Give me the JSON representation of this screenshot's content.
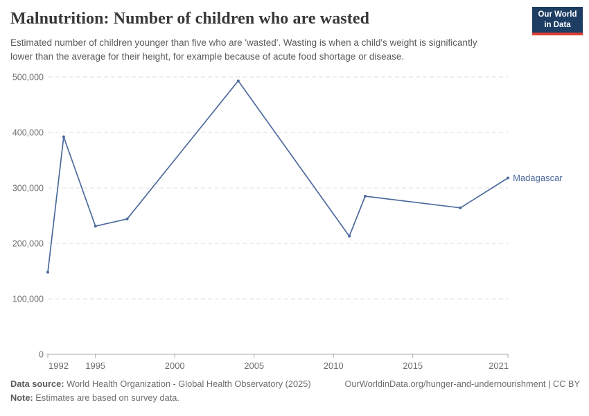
{
  "header": {
    "title": "Malnutrition: Number of children who are wasted",
    "subtitle": "Estimated number of children younger than five who are 'wasted'. Wasting is when a child's weight is significantly lower than the average for their height, for example because of acute food shortage or disease.",
    "logo": {
      "line1": "Our World",
      "line2": "in Data"
    }
  },
  "chart_data": {
    "type": "line",
    "title": "Malnutrition: Number of children who are wasted",
    "xlabel": "",
    "ylabel": "",
    "xlim": [
      1992,
      2021
    ],
    "ylim": [
      0,
      500000
    ],
    "x_ticks": [
      1992,
      1995,
      2000,
      2005,
      2010,
      2015,
      2021
    ],
    "y_ticks": [
      0,
      100000,
      200000,
      300000,
      400000,
      500000
    ],
    "grid": "horizontal-dashed",
    "legend_position": "line-end-label",
    "series": [
      {
        "name": "Madagascar",
        "color": "#4c6a9c",
        "x": [
          1992,
          1993,
          1995,
          1997,
          2004,
          2011,
          2012,
          2018,
          2021
        ],
        "values": [
          148000,
          392000,
          231000,
          244000,
          493000,
          213000,
          285000,
          264000,
          318000
        ]
      }
    ]
  },
  "colors": {
    "line": "#4c6a9c",
    "axis": "#a8a8a8",
    "grid": "#dedede",
    "tick_label": "#6e6e6e",
    "logo_bg": "#1d3d63",
    "logo_accent": "#dc3e32"
  },
  "footer": {
    "datasource_label": "Data source:",
    "datasource_text": " World Health Organization - Global Health Observatory (2025)",
    "note_label": "Note:",
    "note_text": " Estimates are based on survey data.",
    "link": "OurWorldinData.org/hunger-and-undernourishment | CC BY"
  }
}
